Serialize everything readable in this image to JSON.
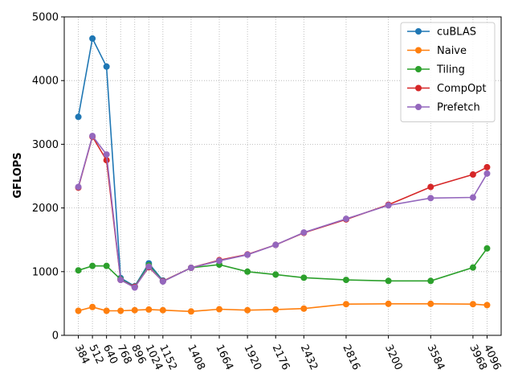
{
  "chart_data": {
    "type": "line",
    "title": "",
    "xlabel": "",
    "ylabel": "GFLOPS",
    "x": [
      384,
      512,
      640,
      768,
      896,
      1024,
      1152,
      1408,
      1664,
      1920,
      2176,
      2432,
      2816,
      3200,
      3584,
      3968,
      4096
    ],
    "xlim": [
      256,
      4224
    ],
    "ylim": [
      0,
      5000
    ],
    "yticks": [
      0,
      1000,
      2000,
      3000,
      4000,
      5000
    ],
    "grid": true,
    "legend_position": "top-right",
    "series": [
      {
        "name": "cuBLAS",
        "color": "#1f77b4",
        "values": [
          3430,
          4660,
          4220,
          900,
          770,
          1130,
          860,
          null,
          null,
          null,
          null,
          null,
          null,
          null,
          null,
          null,
          null
        ]
      },
      {
        "name": "Naive",
        "color": "#ff7f0e",
        "values": [
          385,
          445,
          385,
          385,
          395,
          405,
          395,
          375,
          410,
          395,
          405,
          420,
          490,
          495,
          495,
          490,
          475
        ]
      },
      {
        "name": "Tiling",
        "color": "#2ca02c",
        "values": [
          1020,
          1090,
          1090,
          880,
          760,
          1100,
          850,
          1060,
          1110,
          1000,
          955,
          905,
          870,
          855,
          855,
          1065,
          1365
        ]
      },
      {
        "name": "CompOpt",
        "color": "#d62728",
        "values": [
          2320,
          3120,
          2750,
          870,
          760,
          1070,
          850,
          1060,
          1180,
          1270,
          1420,
          1610,
          1820,
          2050,
          2330,
          2525,
          2640
        ]
      },
      {
        "name": "Prefetch",
        "color": "#9467bd",
        "values": [
          2330,
          3130,
          2840,
          870,
          750,
          1080,
          845,
          1060,
          1170,
          1265,
          1420,
          1615,
          1830,
          2040,
          2155,
          2165,
          2540
        ]
      }
    ]
  }
}
